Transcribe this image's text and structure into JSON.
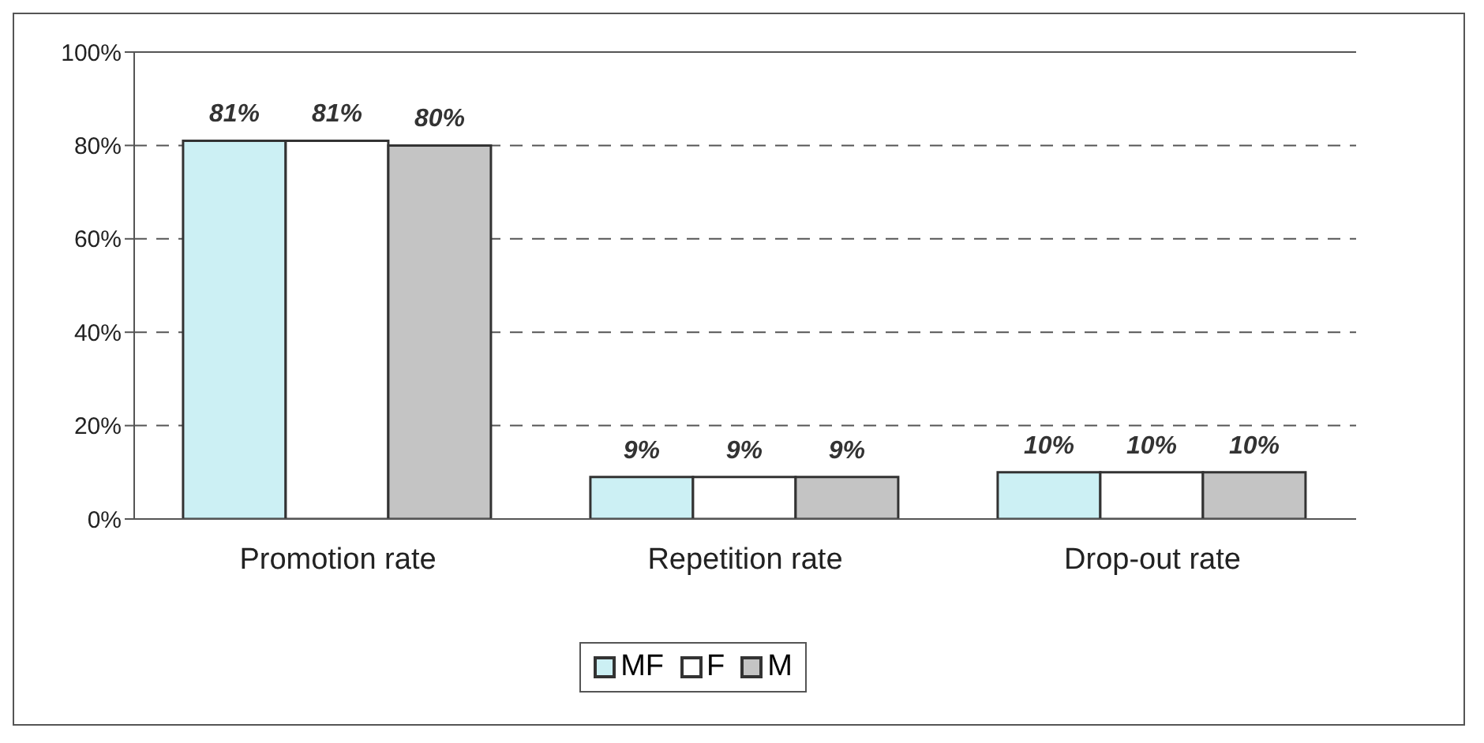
{
  "chart_data": {
    "type": "bar",
    "categories": [
      "Promotion rate",
      "Repetition rate",
      "Drop-out rate"
    ],
    "series": [
      {
        "name": "MF",
        "color": "#ccf0f4",
        "values": [
          81,
          9,
          10
        ],
        "value_labels": [
          "81%",
          "9%",
          "10%"
        ]
      },
      {
        "name": "F",
        "color": "#ffffff",
        "values": [
          81,
          9,
          10
        ],
        "value_labels": [
          "81%",
          "9%",
          "10%"
        ]
      },
      {
        "name": "M",
        "color": "#c4c4c4",
        "values": [
          80,
          9,
          10
        ],
        "value_labels": [
          "80%",
          "9%",
          "10%"
        ]
      }
    ],
    "ylim": [
      0,
      100
    ],
    "yticks": [
      {
        "value": 0,
        "label": "0%"
      },
      {
        "value": 20,
        "label": "20%"
      },
      {
        "value": 40,
        "label": "40%"
      },
      {
        "value": 60,
        "label": "60%"
      },
      {
        "value": 80,
        "label": "80%"
      },
      {
        "value": 100,
        "label": "100%"
      }
    ],
    "grid": "y",
    "legend": "bottom"
  }
}
